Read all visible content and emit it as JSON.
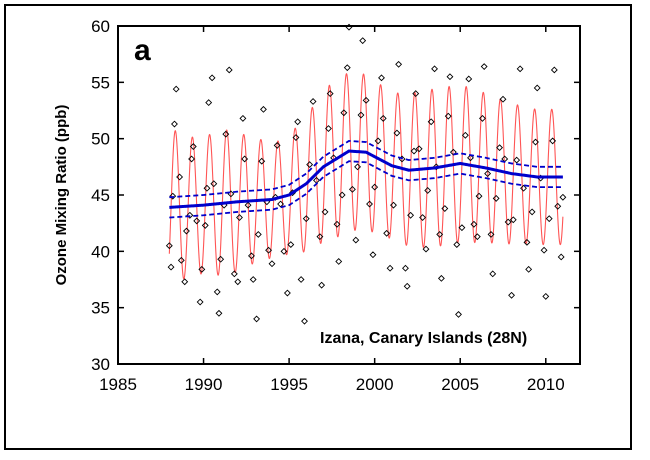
{
  "chart_data": {
    "type": "line",
    "panel_label": "a",
    "title": "",
    "xlabel": "",
    "ylabel": "Ozone Mixing Ratio (ppb)",
    "annotation": "Izana, Canary Islands (28N)",
    "xlim": [
      1985,
      2012
    ],
    "ylim": [
      30,
      60
    ],
    "x_ticks": [
      1985,
      1990,
      1995,
      2000,
      2005,
      2010
    ],
    "y_ticks": [
      30,
      35,
      40,
      45,
      50,
      55,
      60
    ],
    "grid": false,
    "legend": "none",
    "colors": {
      "seasonal": "#ff5555",
      "trend": "#0000cc",
      "points": "#000000"
    },
    "seasonal": {
      "x_start": 1988.0,
      "x_end": 2011.0,
      "phase_peak": 0.35,
      "amplitude": [
        [
          1988.0,
          7.0
        ],
        [
          1989.5,
          6.0
        ],
        [
          1991.5,
          6.5
        ],
        [
          1993.0,
          5.5
        ],
        [
          1994.5,
          5.0
        ],
        [
          1996.0,
          6.0
        ],
        [
          1997.5,
          7.0
        ],
        [
          1999.0,
          7.0
        ],
        [
          2001.0,
          6.5
        ],
        [
          2003.0,
          7.0
        ],
        [
          2005.0,
          7.0
        ],
        [
          2007.0,
          6.5
        ],
        [
          2009.0,
          6.0
        ],
        [
          2011.0,
          6.0
        ]
      ]
    },
    "trend": [
      [
        1988.0,
        43.9
      ],
      [
        1990.0,
        44.1
      ],
      [
        1992.0,
        44.4
      ],
      [
        1994.0,
        44.6
      ],
      [
        1995.0,
        45.0
      ],
      [
        1996.0,
        46.0
      ],
      [
        1997.0,
        47.5
      ],
      [
        1998.5,
        48.9
      ],
      [
        1999.5,
        48.8
      ],
      [
        2001.0,
        47.6
      ],
      [
        2002.0,
        47.2
      ],
      [
        2003.5,
        47.4
      ],
      [
        2005.0,
        47.8
      ],
      [
        2006.5,
        47.4
      ],
      [
        2008.0,
        46.9
      ],
      [
        2009.5,
        46.6
      ],
      [
        2011.0,
        46.6
      ]
    ],
    "trend_ci_halfwidth": 0.9,
    "observations": [
      [
        1988.0,
        40.5
      ],
      [
        1988.1,
        38.6
      ],
      [
        1988.2,
        44.9
      ],
      [
        1988.3,
        51.3
      ],
      [
        1988.4,
        54.4
      ],
      [
        1988.6,
        46.6
      ],
      [
        1988.7,
        39.2
      ],
      [
        1988.9,
        37.3
      ],
      [
        1989.0,
        41.8
      ],
      [
        1989.2,
        43.2
      ],
      [
        1989.3,
        48.2
      ],
      [
        1989.4,
        49.3
      ],
      [
        1989.6,
        42.7
      ],
      [
        1989.8,
        35.5
      ],
      [
        1989.9,
        38.4
      ],
      [
        1990.1,
        42.3
      ],
      [
        1990.2,
        45.6
      ],
      [
        1990.3,
        53.2
      ],
      [
        1990.5,
        55.4
      ],
      [
        1990.6,
        46.0
      ],
      [
        1990.8,
        36.4
      ],
      [
        1990.9,
        34.5
      ],
      [
        1991.0,
        39.3
      ],
      [
        1991.2,
        44.1
      ],
      [
        1991.3,
        50.4
      ],
      [
        1991.5,
        56.1
      ],
      [
        1991.6,
        45.1
      ],
      [
        1991.8,
        38.0
      ],
      [
        1992.0,
        37.3
      ],
      [
        1992.1,
        43.0
      ],
      [
        1992.3,
        51.8
      ],
      [
        1992.4,
        48.2
      ],
      [
        1992.6,
        44.1
      ],
      [
        1992.8,
        39.6
      ],
      [
        1992.9,
        37.5
      ],
      [
        1993.1,
        34.0
      ],
      [
        1993.2,
        41.5
      ],
      [
        1993.4,
        48.0
      ],
      [
        1993.5,
        52.6
      ],
      [
        1993.7,
        44.4
      ],
      [
        1993.8,
        40.1
      ],
      [
        1994.0,
        38.9
      ],
      [
        1994.2,
        44.8
      ],
      [
        1994.3,
        49.4
      ],
      [
        1994.5,
        44.2
      ],
      [
        1994.7,
        40.0
      ],
      [
        1994.9,
        36.3
      ],
      [
        1995.1,
        40.6
      ],
      [
        1995.2,
        45.2
      ],
      [
        1995.4,
        50.1
      ],
      [
        1995.5,
        51.5
      ],
      [
        1995.7,
        37.5
      ],
      [
        1995.9,
        33.8
      ],
      [
        1996.0,
        42.9
      ],
      [
        1996.2,
        47.7
      ],
      [
        1996.4,
        53.3
      ],
      [
        1996.6,
        46.3
      ],
      [
        1996.8,
        41.3
      ],
      [
        1996.9,
        37.0
      ],
      [
        1997.1,
        43.5
      ],
      [
        1997.3,
        50.9
      ],
      [
        1997.4,
        54.0
      ],
      [
        1997.6,
        48.3
      ],
      [
        1997.8,
        42.4
      ],
      [
        1997.9,
        39.1
      ],
      [
        1998.1,
        45.0
      ],
      [
        1998.2,
        52.3
      ],
      [
        1998.4,
        56.3
      ],
      [
        1998.5,
        59.9
      ],
      [
        1998.7,
        45.5
      ],
      [
        1998.9,
        41.0
      ],
      [
        1999.0,
        47.5
      ],
      [
        1999.2,
        52.1
      ],
      [
        1999.3,
        58.7
      ],
      [
        1999.5,
        53.4
      ],
      [
        1999.7,
        44.2
      ],
      [
        1999.9,
        39.7
      ],
      [
        2000.0,
        45.7
      ],
      [
        2000.2,
        49.8
      ],
      [
        2000.4,
        55.4
      ],
      [
        2000.5,
        51.8
      ],
      [
        2000.7,
        41.6
      ],
      [
        2000.9,
        38.5
      ],
      [
        2001.1,
        44.1
      ],
      [
        2001.3,
        50.5
      ],
      [
        2001.4,
        56.6
      ],
      [
        2001.6,
        48.2
      ],
      [
        2001.8,
        38.5
      ],
      [
        2001.9,
        36.9
      ],
      [
        2002.1,
        43.2
      ],
      [
        2002.3,
        48.9
      ],
      [
        2002.4,
        54.0
      ],
      [
        2002.6,
        49.1
      ],
      [
        2002.8,
        43.0
      ],
      [
        2003.0,
        40.2
      ],
      [
        2003.1,
        45.4
      ],
      [
        2003.3,
        51.5
      ],
      [
        2003.5,
        56.2
      ],
      [
        2003.6,
        47.5
      ],
      [
        2003.8,
        41.5
      ],
      [
        2003.9,
        37.6
      ],
      [
        2004.1,
        43.8
      ],
      [
        2004.3,
        52.0
      ],
      [
        2004.4,
        55.5
      ],
      [
        2004.6,
        48.8
      ],
      [
        2004.8,
        40.6
      ],
      [
        2004.9,
        34.4
      ],
      [
        2005.1,
        42.1
      ],
      [
        2005.3,
        50.3
      ],
      [
        2005.5,
        55.3
      ],
      [
        2005.6,
        48.3
      ],
      [
        2005.8,
        42.4
      ],
      [
        2006.0,
        41.3
      ],
      [
        2006.1,
        44.9
      ],
      [
        2006.3,
        51.8
      ],
      [
        2006.4,
        56.4
      ],
      [
        2006.6,
        46.9
      ],
      [
        2006.8,
        41.5
      ],
      [
        2006.9,
        38.0
      ],
      [
        2007.1,
        44.7
      ],
      [
        2007.3,
        49.2
      ],
      [
        2007.5,
        53.5
      ],
      [
        2007.6,
        48.2
      ],
      [
        2007.8,
        42.6
      ],
      [
        2008.0,
        36.1
      ],
      [
        2008.1,
        42.8
      ],
      [
        2008.3,
        48.1
      ],
      [
        2008.5,
        56.2
      ],
      [
        2008.7,
        45.6
      ],
      [
        2008.9,
        40.8
      ],
      [
        2009.0,
        38.4
      ],
      [
        2009.2,
        43.5
      ],
      [
        2009.4,
        49.7
      ],
      [
        2009.5,
        54.5
      ],
      [
        2009.7,
        46.5
      ],
      [
        2009.9,
        40.1
      ],
      [
        2010.0,
        36.0
      ],
      [
        2010.2,
        42.9
      ],
      [
        2010.4,
        49.8
      ],
      [
        2010.5,
        56.1
      ],
      [
        2010.7,
        44.0
      ],
      [
        2010.9,
        39.5
      ],
      [
        2011.0,
        44.8
      ]
    ]
  }
}
